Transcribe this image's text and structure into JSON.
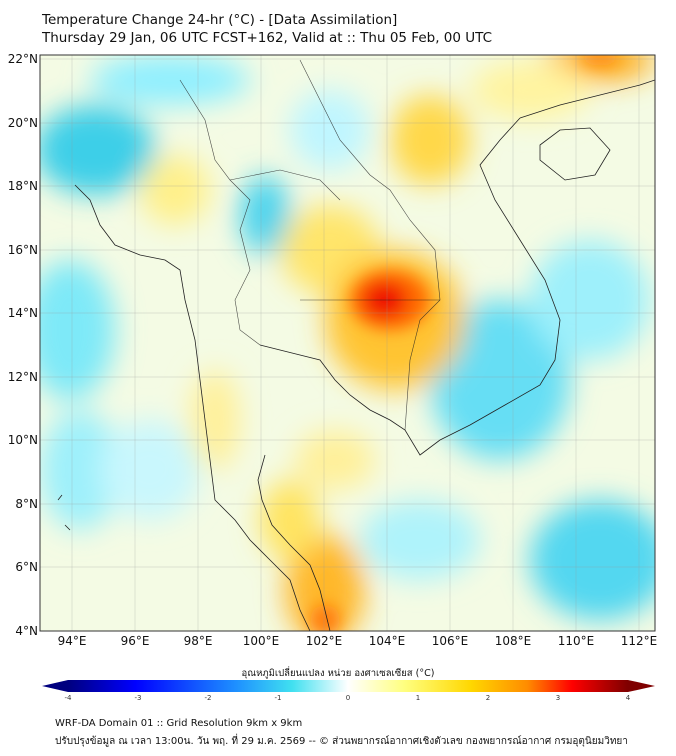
{
  "header": {
    "title": "Temperature Change 24-hr (°C) - [Data Assimilation]",
    "subtitle": "Thursday 29 Jan, 06 UTC FCST+162, Valid at :: Thu 05 Feb, 00 UTC"
  },
  "map": {
    "lat_labels": [
      "22°N",
      "20°N",
      "18°N",
      "16°N",
      "14°N",
      "12°N",
      "10°N",
      "8°N",
      "6°N",
      "4°N"
    ],
    "lon_labels": [
      "94°E",
      "96°E",
      "98°E",
      "100°E",
      "102°E",
      "104°E",
      "106°E",
      "108°E",
      "110°E",
      "112°E"
    ]
  },
  "colorbar": {
    "title": "อุณหภูมิเปลี่ยนแปลง หน่วย องศาเซลเซียส (°C)",
    "ticks": [
      "-4",
      "-3",
      "-2",
      "-1",
      "0",
      "1",
      "2",
      "3",
      "4"
    ],
    "colors": [
      "#00007f",
      "#0000ff",
      "#1e90ff",
      "#40e0f0",
      "#ffffff",
      "#ffff80",
      "#ffd700",
      "#ff8c00",
      "#ff0000",
      "#7f0000"
    ]
  },
  "footer": {
    "line1": "WRF-DA Domain 01 :: Grid Resolution 9km x 9km",
    "line2": "ปรับปรุงข้อมูล ณ เวลา 13:00น. วัน พฤ. ที่ 29 ม.ค. 2569 -- © ส่วนพยากรณ์อากาศเชิงตัวเลข กองพยากรณ์อากาศ กรมอุตุนิยมวิทยา"
  }
}
